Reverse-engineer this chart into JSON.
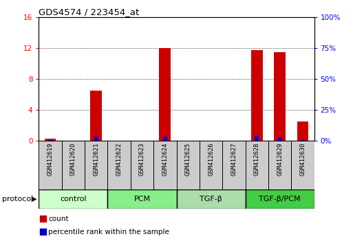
{
  "title": "GDS4574 / 223454_at",
  "samples": [
    "GSM412619",
    "GSM412620",
    "GSM412621",
    "GSM412622",
    "GSM412623",
    "GSM412624",
    "GSM412625",
    "GSM412626",
    "GSM412627",
    "GSM412628",
    "GSM412629",
    "GSM412630"
  ],
  "count_values": [
    0.3,
    0.0,
    6.5,
    0.0,
    0.0,
    12.0,
    0.0,
    0.0,
    0.0,
    11.7,
    11.5,
    2.5
  ],
  "percentile_values": [
    0.5,
    0.0,
    3.5,
    0.0,
    0.0,
    3.5,
    0.0,
    0.0,
    0.0,
    4.0,
    3.0,
    0.5
  ],
  "ylim_left": [
    0,
    16
  ],
  "ylim_right": [
    0,
    100
  ],
  "left_ticks": [
    0,
    4,
    8,
    12,
    16
  ],
  "right_ticks": [
    0,
    25,
    50,
    75,
    100
  ],
  "left_tick_labels": [
    "0",
    "4",
    "8",
    "12",
    "16"
  ],
  "right_tick_labels": [
    "0%",
    "25%",
    "50%",
    "75%",
    "100%"
  ],
  "groups": [
    {
      "label": "control",
      "start": 0,
      "end": 3,
      "color": "#ccffcc"
    },
    {
      "label": "PCM",
      "start": 3,
      "end": 6,
      "color": "#88ee88"
    },
    {
      "label": "TGF-β",
      "start": 6,
      "end": 9,
      "color": "#aaddaa"
    },
    {
      "label": "TGF-β/PCM",
      "start": 9,
      "end": 12,
      "color": "#44cc44"
    }
  ],
  "protocol_label": "protocol",
  "bar_color_red": "#cc0000",
  "bar_color_blue": "#0000cc",
  "sample_area_color": "#cccccc",
  "legend_items": [
    {
      "color": "#cc0000",
      "label": "count"
    },
    {
      "color": "#0000cc",
      "label": "percentile rank within the sample"
    }
  ]
}
